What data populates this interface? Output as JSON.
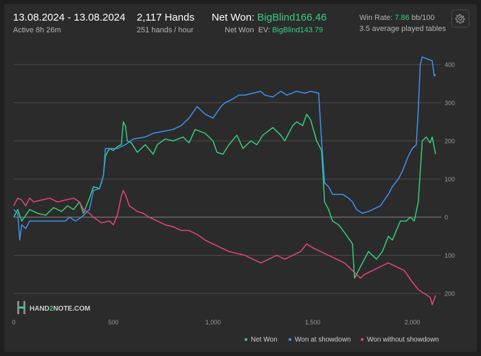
{
  "header": {
    "date_range": "13.08.2024 - 13.08.2024",
    "active": "Active 8h 26m",
    "hands": "2,117 Hands",
    "hands_per_hour": "251 hands / hour",
    "net_won_label": "Net Won:",
    "net_won_value": "BigBlind166.46",
    "net_won_ev_label": "Net Won  EV:",
    "net_won_ev_value": "BigBlind143.79",
    "win_rate_label": "Win Rate:",
    "win_rate_value": "7.86",
    "win_rate_unit": "bb/100",
    "avg_tables": "3.5 average played tables",
    "gear_icon": "gear-icon"
  },
  "logo": {
    "text_a": "HAND",
    "text_b": "2",
    "text_c": "NOTE.COM"
  },
  "colors": {
    "net_won": "#35d07f",
    "showdown": "#3d94f5",
    "non_showdown": "#e8467c",
    "grid": "#4a4a4a",
    "zero": "#8a8a8a",
    "tick": "#9a9a9a"
  },
  "chart_data": {
    "type": "line",
    "x_ticks": [
      0,
      500,
      1000,
      1500,
      2000
    ],
    "x_tick_labels": [
      "0",
      "500",
      "1,000",
      "1,500",
      "2,000"
    ],
    "y_ticks": [
      400,
      300,
      200,
      100,
      0,
      -100,
      -200
    ],
    "y_tick_labels": [
      "400",
      "300",
      "200",
      "100",
      "0",
      "100",
      "200"
    ],
    "xlim": [
      0,
      2117
    ],
    "ylim": [
      -240,
      420
    ],
    "grid": true,
    "legend_position": "bottom-right",
    "series": [
      {
        "name": "Net Won",
        "color": "#35d07f",
        "points": [
          [
            0,
            0
          ],
          [
            20,
            20
          ],
          [
            40,
            -10
          ],
          [
            80,
            20
          ],
          [
            120,
            10
          ],
          [
            160,
            5
          ],
          [
            200,
            25
          ],
          [
            240,
            15
          ],
          [
            270,
            30
          ],
          [
            300,
            20
          ],
          [
            330,
            40
          ],
          [
            350,
            10
          ],
          [
            380,
            50
          ],
          [
            400,
            80
          ],
          [
            430,
            75
          ],
          [
            440,
            90
          ],
          [
            450,
            110
          ],
          [
            460,
            160
          ],
          [
            480,
            180
          ],
          [
            500,
            175
          ],
          [
            520,
            185
          ],
          [
            540,
            190
          ],
          [
            550,
            250
          ],
          [
            560,
            240
          ],
          [
            570,
            200
          ],
          [
            590,
            195
          ],
          [
            620,
            170
          ],
          [
            660,
            190
          ],
          [
            700,
            165
          ],
          [
            720,
            190
          ],
          [
            760,
            205
          ],
          [
            800,
            200
          ],
          [
            850,
            210
          ],
          [
            880,
            195
          ],
          [
            910,
            230
          ],
          [
            960,
            220
          ],
          [
            1000,
            200
          ],
          [
            1020,
            170
          ],
          [
            1050,
            165
          ],
          [
            1080,
            190
          ],
          [
            1120,
            215
          ],
          [
            1150,
            180
          ],
          [
            1190,
            200
          ],
          [
            1220,
            190
          ],
          [
            1250,
            215
          ],
          [
            1300,
            235
          ],
          [
            1340,
            215
          ],
          [
            1360,
            200
          ],
          [
            1400,
            240
          ],
          [
            1420,
            250
          ],
          [
            1450,
            240
          ],
          [
            1470,
            270
          ],
          [
            1490,
            255
          ],
          [
            1520,
            200
          ],
          [
            1545,
            175
          ],
          [
            1550,
            130
          ],
          [
            1560,
            40
          ],
          [
            1580,
            20
          ],
          [
            1600,
            -10
          ],
          [
            1630,
            -20
          ],
          [
            1660,
            -40
          ],
          [
            1700,
            -70
          ],
          [
            1710,
            -160
          ],
          [
            1720,
            -150
          ],
          [
            1740,
            -130
          ],
          [
            1760,
            -110
          ],
          [
            1780,
            -90
          ],
          [
            1820,
            -110
          ],
          [
            1850,
            -90
          ],
          [
            1880,
            -50
          ],
          [
            1900,
            -60
          ],
          [
            1940,
            -10
          ],
          [
            1970,
            -10
          ],
          [
            1990,
            0
          ],
          [
            2010,
            -10
          ],
          [
            2030,
            40
          ],
          [
            2050,
            200
          ],
          [
            2070,
            210
          ],
          [
            2090,
            195
          ],
          [
            2100,
            210
          ],
          [
            2117,
            165
          ]
        ]
      },
      {
        "name": "Won at showdown",
        "color": "#3d94f5",
        "points": [
          [
            0,
            20
          ],
          [
            20,
            10
          ],
          [
            30,
            -60
          ],
          [
            40,
            -20
          ],
          [
            60,
            -30
          ],
          [
            80,
            -10
          ],
          [
            130,
            -10
          ],
          [
            200,
            -10
          ],
          [
            260,
            -10
          ],
          [
            280,
            0
          ],
          [
            310,
            -10
          ],
          [
            340,
            0
          ],
          [
            350,
            5
          ],
          [
            360,
            10
          ],
          [
            380,
            20
          ],
          [
            400,
            70
          ],
          [
            430,
            75
          ],
          [
            450,
            110
          ],
          [
            460,
            180
          ],
          [
            480,
            180
          ],
          [
            520,
            180
          ],
          [
            560,
            190
          ],
          [
            600,
            205
          ],
          [
            660,
            210
          ],
          [
            700,
            220
          ],
          [
            750,
            225
          ],
          [
            800,
            230
          ],
          [
            840,
            240
          ],
          [
            880,
            260
          ],
          [
            920,
            290
          ],
          [
            960,
            270
          ],
          [
            1000,
            260
          ],
          [
            1040,
            290
          ],
          [
            1060,
            300
          ],
          [
            1100,
            310
          ],
          [
            1130,
            320
          ],
          [
            1160,
            320
          ],
          [
            1200,
            325
          ],
          [
            1240,
            330
          ],
          [
            1260,
            320
          ],
          [
            1300,
            315
          ],
          [
            1340,
            330
          ],
          [
            1370,
            320
          ],
          [
            1420,
            330
          ],
          [
            1460,
            325
          ],
          [
            1490,
            330
          ],
          [
            1530,
            325
          ],
          [
            1545,
            200
          ],
          [
            1560,
            90
          ],
          [
            1580,
            80
          ],
          [
            1600,
            60
          ],
          [
            1650,
            60
          ],
          [
            1680,
            50
          ],
          [
            1700,
            40
          ],
          [
            1720,
            20
          ],
          [
            1750,
            10
          ],
          [
            1780,
            15
          ],
          [
            1800,
            20
          ],
          [
            1840,
            30
          ],
          [
            1880,
            60
          ],
          [
            1900,
            80
          ],
          [
            1930,
            100
          ],
          [
            1950,
            120
          ],
          [
            1980,
            160
          ],
          [
            2000,
            180
          ],
          [
            2020,
            190
          ],
          [
            2030,
            280
          ],
          [
            2040,
            400
          ],
          [
            2050,
            420
          ],
          [
            2100,
            410
          ],
          [
            2110,
            370
          ],
          [
            2117,
            375
          ]
        ]
      },
      {
        "name": "Won without showdown",
        "color": "#e8467c",
        "points": [
          [
            0,
            30
          ],
          [
            20,
            50
          ],
          [
            40,
            45
          ],
          [
            60,
            30
          ],
          [
            80,
            50
          ],
          [
            100,
            40
          ],
          [
            140,
            45
          ],
          [
            180,
            50
          ],
          [
            220,
            40
          ],
          [
            260,
            45
          ],
          [
            300,
            50
          ],
          [
            330,
            40
          ],
          [
            350,
            20
          ],
          [
            380,
            10
          ],
          [
            400,
            0
          ],
          [
            440,
            -15
          ],
          [
            480,
            -10
          ],
          [
            500,
            -20
          ],
          [
            520,
            5
          ],
          [
            540,
            55
          ],
          [
            550,
            70
          ],
          [
            560,
            60
          ],
          [
            580,
            30
          ],
          [
            620,
            15
          ],
          [
            650,
            10
          ],
          [
            680,
            0
          ],
          [
            720,
            -10
          ],
          [
            760,
            -20
          ],
          [
            800,
            -25
          ],
          [
            840,
            -35
          ],
          [
            880,
            -35
          ],
          [
            920,
            -45
          ],
          [
            960,
            -60
          ],
          [
            1000,
            -70
          ],
          [
            1040,
            -80
          ],
          [
            1080,
            -90
          ],
          [
            1120,
            -95
          ],
          [
            1160,
            -100
          ],
          [
            1200,
            -110
          ],
          [
            1240,
            -120
          ],
          [
            1280,
            -110
          ],
          [
            1320,
            -100
          ],
          [
            1360,
            -110
          ],
          [
            1400,
            -100
          ],
          [
            1440,
            -90
          ],
          [
            1470,
            -70
          ],
          [
            1500,
            -80
          ],
          [
            1540,
            -90
          ],
          [
            1580,
            -100
          ],
          [
            1620,
            -110
          ],
          [
            1660,
            -120
          ],
          [
            1700,
            -140
          ],
          [
            1740,
            -160
          ],
          [
            1760,
            -150
          ],
          [
            1800,
            -140
          ],
          [
            1840,
            -130
          ],
          [
            1880,
            -120
          ],
          [
            1920,
            -130
          ],
          [
            1960,
            -140
          ],
          [
            2000,
            -170
          ],
          [
            2030,
            -190
          ],
          [
            2060,
            -200
          ],
          [
            2090,
            -210
          ],
          [
            2100,
            -230
          ],
          [
            2117,
            -205
          ]
        ]
      }
    ]
  }
}
